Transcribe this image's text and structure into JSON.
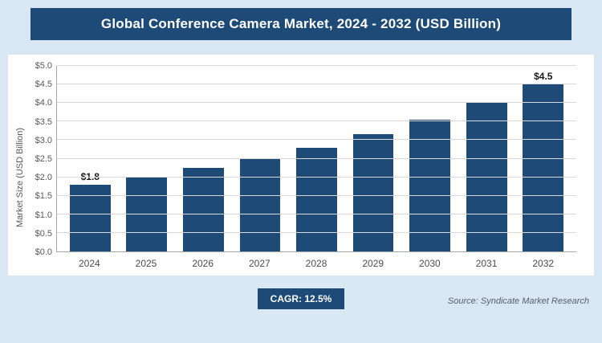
{
  "header": {
    "title": "Global Conference Camera Market, 2024 - 2032 (USD Billion)"
  },
  "chart_data": {
    "type": "bar",
    "title": "Global Conference Camera Market, 2024 - 2032 (USD Billion)",
    "categories": [
      "2024",
      "2025",
      "2026",
      "2027",
      "2028",
      "2029",
      "2030",
      "2031",
      "2032"
    ],
    "values": [
      1.8,
      2.0,
      2.25,
      2.5,
      2.8,
      3.15,
      3.55,
      4.0,
      4.5
    ],
    "bar_labels": [
      "$1.8",
      "",
      "",
      "",
      "",
      "",
      "",
      "",
      "$4.5"
    ],
    "xlabel": "",
    "ylabel": "Market Size (USD Billion)",
    "ylim": [
      0,
      5
    ],
    "ytick_step": 0.5,
    "yticks": [
      "$0.0",
      "$0.5",
      "$1.0",
      "$1.5",
      "$2.0",
      "$2.5",
      "$3.0",
      "$3.5",
      "$4.0",
      "$4.5",
      "$5.0"
    ],
    "grid": true,
    "legend": false
  },
  "footer": {
    "cagr_label": "CAGR: 12.5%",
    "source": "Source: Syndicate Market Research"
  },
  "colors": {
    "bar": "#1d4a77",
    "header_bg": "#1d4a77",
    "badge_bg": "#1d4a77",
    "page_bg": "#d9e6f3",
    "panel_bg": "#ffffff",
    "grid": "#d9d9d9",
    "axis": "#a6a6a6",
    "tick_text": "#595959"
  }
}
